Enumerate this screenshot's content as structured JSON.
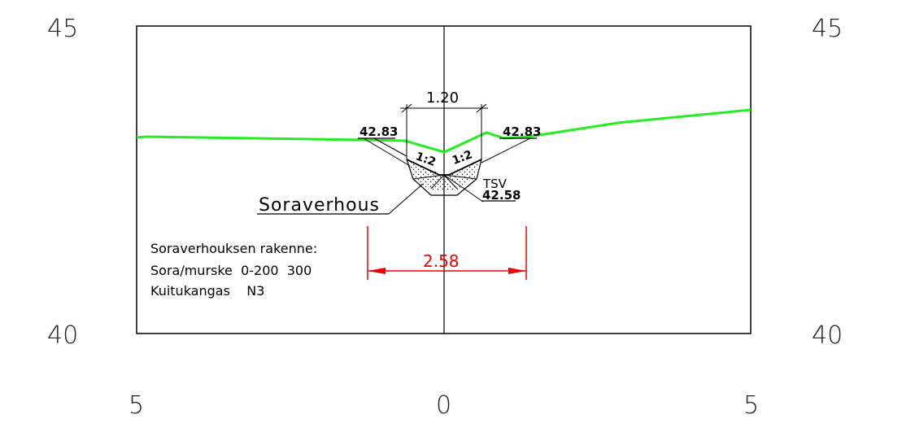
{
  "axis": {
    "y_top_left": "45",
    "y_top_right": "45",
    "y_bottom_left": "40",
    "y_bottom_right": "40",
    "x_left": "5",
    "x_center": "0",
    "x_right": "5"
  },
  "section": {
    "top_width": "1.20",
    "left_edge_level": "42.83",
    "right_edge_level": "42.83",
    "left_slope": "1:2",
    "right_slope": "1:2",
    "bottom_code": "TSV",
    "bottom_level": "42.58",
    "verhous_label": "Soraverhous",
    "span_width": "2.58"
  },
  "notes": {
    "title": "Soraverhouksen rakenne:",
    "line1": "Sora/murske  0-200  300",
    "line2": "Kuitukangas    N3"
  },
  "colors": {
    "ground": "#22ee22",
    "dimension": "#ee0000",
    "lines": "#000000"
  }
}
